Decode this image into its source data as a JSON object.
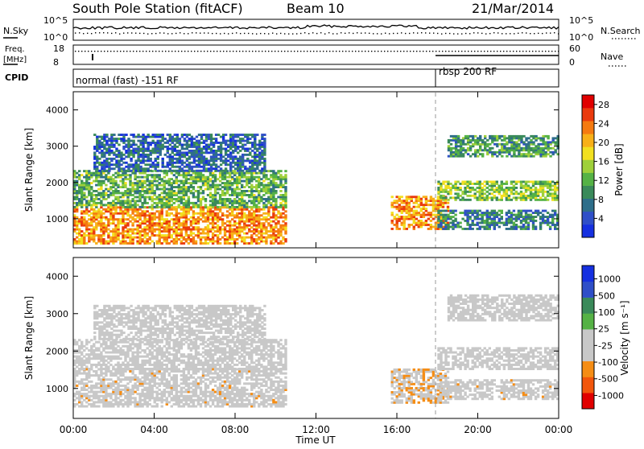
{
  "header": {
    "station": "South Pole Station (fitACF)",
    "beam": "Beam 10",
    "date": "21/Mar/2014"
  },
  "top_panels": {
    "nsky_label": "N.Sky",
    "nsky_ticks": [
      "10^5",
      "10^0"
    ],
    "nsearch_label": "N.Search",
    "nsearch_ticks": [
      "10^5",
      "10^0"
    ],
    "freq_label_1": "Freq.",
    "freq_label_2": "[MHz]",
    "freq_ticks": [
      "18",
      "8"
    ],
    "nave_label": "Nave",
    "nave_ticks": [
      "60",
      "0"
    ],
    "cpid_label": "CPID",
    "cpid_segments": [
      {
        "label": "normal (fast) -151 RF",
        "start_hour": 0
      },
      {
        "label": "rbsp 200 RF",
        "start_hour": 18
      }
    ]
  },
  "colors": {
    "power_scale": [
      "#1530e0",
      "#2f4fc8",
      "#2e6e8a",
      "#3a8a5a",
      "#55b245",
      "#9fd03a",
      "#f2e020",
      "#f8b018",
      "#f57a10",
      "#ea3a0d",
      "#e00000"
    ],
    "velocity_scale": [
      "#e00000",
      "#f2560c",
      "#f58d15",
      "#c8c8c8",
      "#c8c8c8",
      "#55b245",
      "#3a8a5a",
      "#2f4fc8",
      "#1530e0"
    ]
  },
  "chart_data": [
    {
      "type": "heatmap",
      "title": "",
      "xlabel": "Time UT",
      "ylabel": "Slant Range [km]",
      "xlim": [
        0,
        24
      ],
      "ylim": [
        200,
        4500
      ],
      "x_ticks": [
        "00:00",
        "04:00",
        "08:00",
        "12:00",
        "16:00",
        "20:00",
        "00:00"
      ],
      "y_ticks": [
        "1000",
        "2000",
        "3000",
        "4000"
      ],
      "colorbar_label": "Power [dB]",
      "colorbar_ticks": [
        "28",
        "24",
        "20",
        "16",
        "12",
        "8",
        "4"
      ],
      "colorbar_range": [
        0,
        30
      ],
      "bands": [
        {
          "t0": 0.0,
          "t1": 10.5,
          "r0": 300,
          "r1": 1300,
          "value": 22
        },
        {
          "t0": 0.0,
          "t1": 10.5,
          "r0": 1300,
          "r1": 2300,
          "value": 12
        },
        {
          "t0": 1.0,
          "t1": 9.5,
          "r0": 2300,
          "r1": 3300,
          "value": 6
        },
        {
          "t0": 15.7,
          "t1": 18.5,
          "r0": 700,
          "r1": 1600,
          "value": 22
        },
        {
          "t0": 18.0,
          "t1": 24.0,
          "r0": 700,
          "r1": 1200,
          "value": 8
        },
        {
          "t0": 18.0,
          "t1": 24.0,
          "r0": 1500,
          "r1": 2000,
          "value": 14
        },
        {
          "t0": 18.5,
          "t1": 24.0,
          "r0": 2700,
          "r1": 3300,
          "value": 10
        }
      ]
    },
    {
      "type": "heatmap",
      "title": "",
      "xlabel": "Time UT",
      "ylabel": "Slant Range [km]",
      "xlim": [
        0,
        24
      ],
      "ylim": [
        200,
        4500
      ],
      "x_ticks": [
        "00:00",
        "04:00",
        "08:00",
        "12:00",
        "16:00",
        "20:00",
        "00:00"
      ],
      "y_ticks": [
        "1000",
        "2000",
        "3000",
        "4000"
      ],
      "colorbar_label": "Velocity [m s⁻¹]",
      "colorbar_ticks": [
        "1000",
        "500",
        "100",
        "25",
        "-25",
        "-100",
        "-500",
        "-1000"
      ],
      "colorbar_range": [
        -1000,
        1000
      ],
      "bands": [
        {
          "t0": 0.0,
          "t1": 10.5,
          "r0": 500,
          "r1": 1500,
          "value": -250
        },
        {
          "t0": 0.0,
          "t1": 10.5,
          "r0": 1500,
          "r1": 2300,
          "value": 0
        },
        {
          "t0": 1.0,
          "t1": 9.5,
          "r0": 2300,
          "r1": 3200,
          "value": -60
        },
        {
          "t0": 15.7,
          "t1": 18.5,
          "r0": 600,
          "r1": 1500,
          "value": -300
        },
        {
          "t0": 18.0,
          "t1": 24.0,
          "r0": 700,
          "r1": 1200,
          "value": -250
        },
        {
          "t0": 18.0,
          "t1": 24.0,
          "r0": 1500,
          "r1": 2100,
          "value": 0
        },
        {
          "t0": 18.5,
          "t1": 24.0,
          "r0": 2800,
          "r1": 3500,
          "value": 0
        }
      ]
    }
  ]
}
